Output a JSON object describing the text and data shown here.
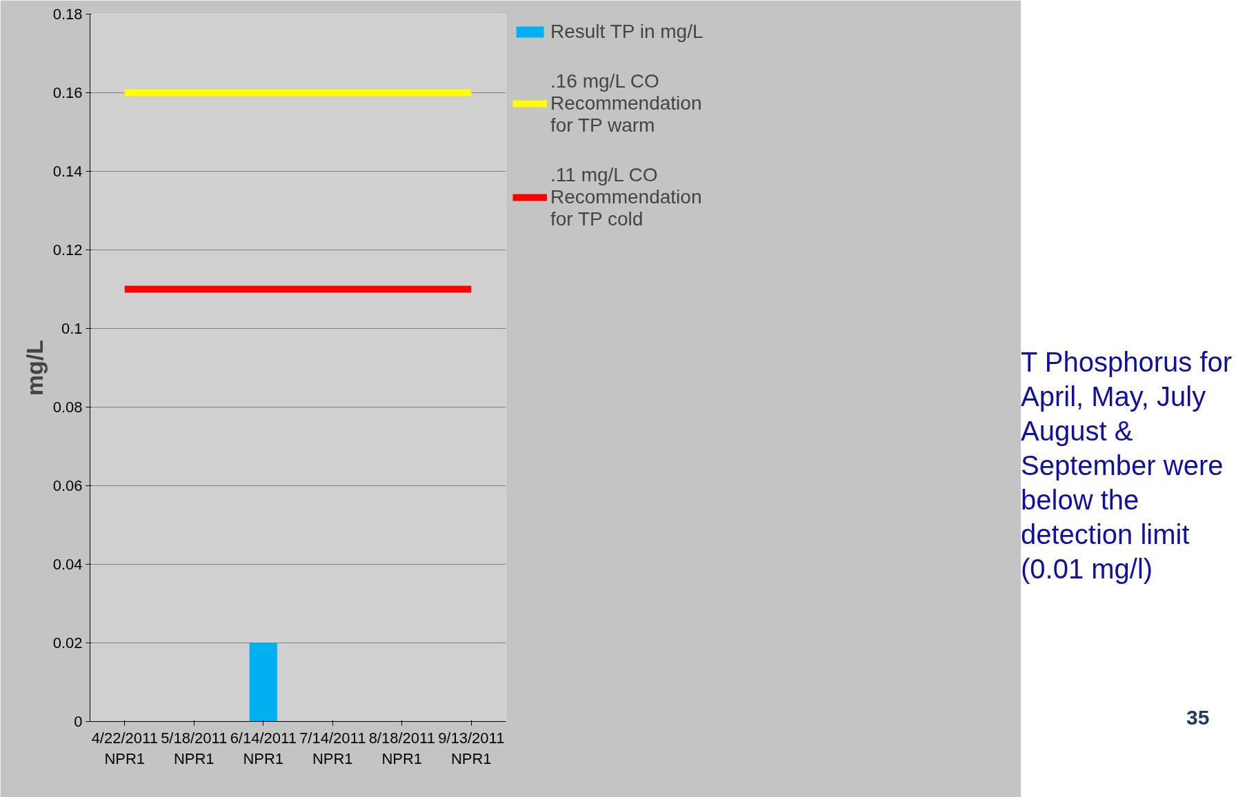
{
  "chart_data": {
    "type": "bar",
    "ylabel": "mg/L",
    "categories": [
      "4/22/2011\nNPR1",
      "5/18/2011\nNPR1",
      "6/14/2011\nNPR1",
      "7/14/2011\nNPR1",
      "8/18/2011\nNPR1",
      "9/13/2011\nNPR1"
    ],
    "series": [
      {
        "name": "Result TP in mg/L",
        "color": "#00b0f0",
        "values": [
          null,
          null,
          0.02,
          null,
          null,
          null
        ]
      },
      {
        "name": ".16 mg/L CO\nRecommendation\nfor TP warm",
        "type": "line",
        "color": "#ffff00",
        "values": [
          0.16,
          0.16,
          0.16,
          0.16,
          0.16,
          0.16
        ]
      },
      {
        "name": ".11 mg/L CO\nRecommendation\nfor TP cold",
        "type": "line",
        "color": "#ff0000",
        "values": [
          0.11,
          0.11,
          0.11,
          0.11,
          0.11,
          0.11
        ]
      }
    ],
    "ylim": [
      0,
      0.18
    ],
    "yticks": [
      0,
      0.02,
      0.04,
      0.06,
      0.08,
      {
        "value": 0.1,
        "label": "0.1"
      },
      0.12,
      0.14,
      0.16,
      0.18
    ],
    "grid": "y",
    "legend": "right",
    "annotations": [
      "T Phosphorus for\nApril, May, July\nAugust &\nSeptember were\nbelow the\ndetection limit\n(0.01 mg/l)",
      "35"
    ]
  }
}
